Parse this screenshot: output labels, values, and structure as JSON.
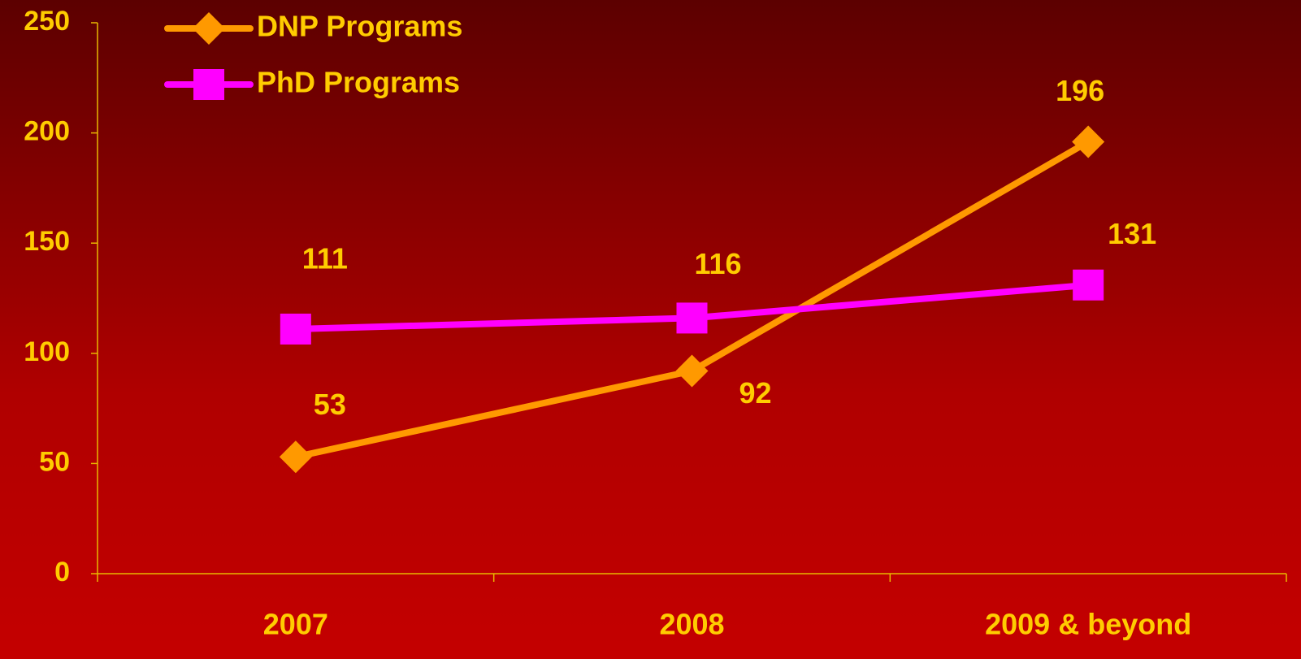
{
  "chart_data": {
    "type": "line",
    "categories": [
      "2007",
      "2008",
      "2009 & beyond"
    ],
    "series": [
      {
        "name": "DNP Programs",
        "color": "#ff9900",
        "marker": "diamond",
        "values": [
          53,
          92,
          196
        ]
      },
      {
        "name": "PhD Programs",
        "color": "#ff00ff",
        "marker": "square",
        "values": [
          111,
          116,
          131
        ]
      }
    ],
    "ylim": [
      0,
      250
    ],
    "yticks": [
      0,
      50,
      100,
      150,
      200,
      250
    ],
    "text_color": "#ffcc00",
    "axis_color": "#e8b800",
    "legend": "upper left"
  }
}
